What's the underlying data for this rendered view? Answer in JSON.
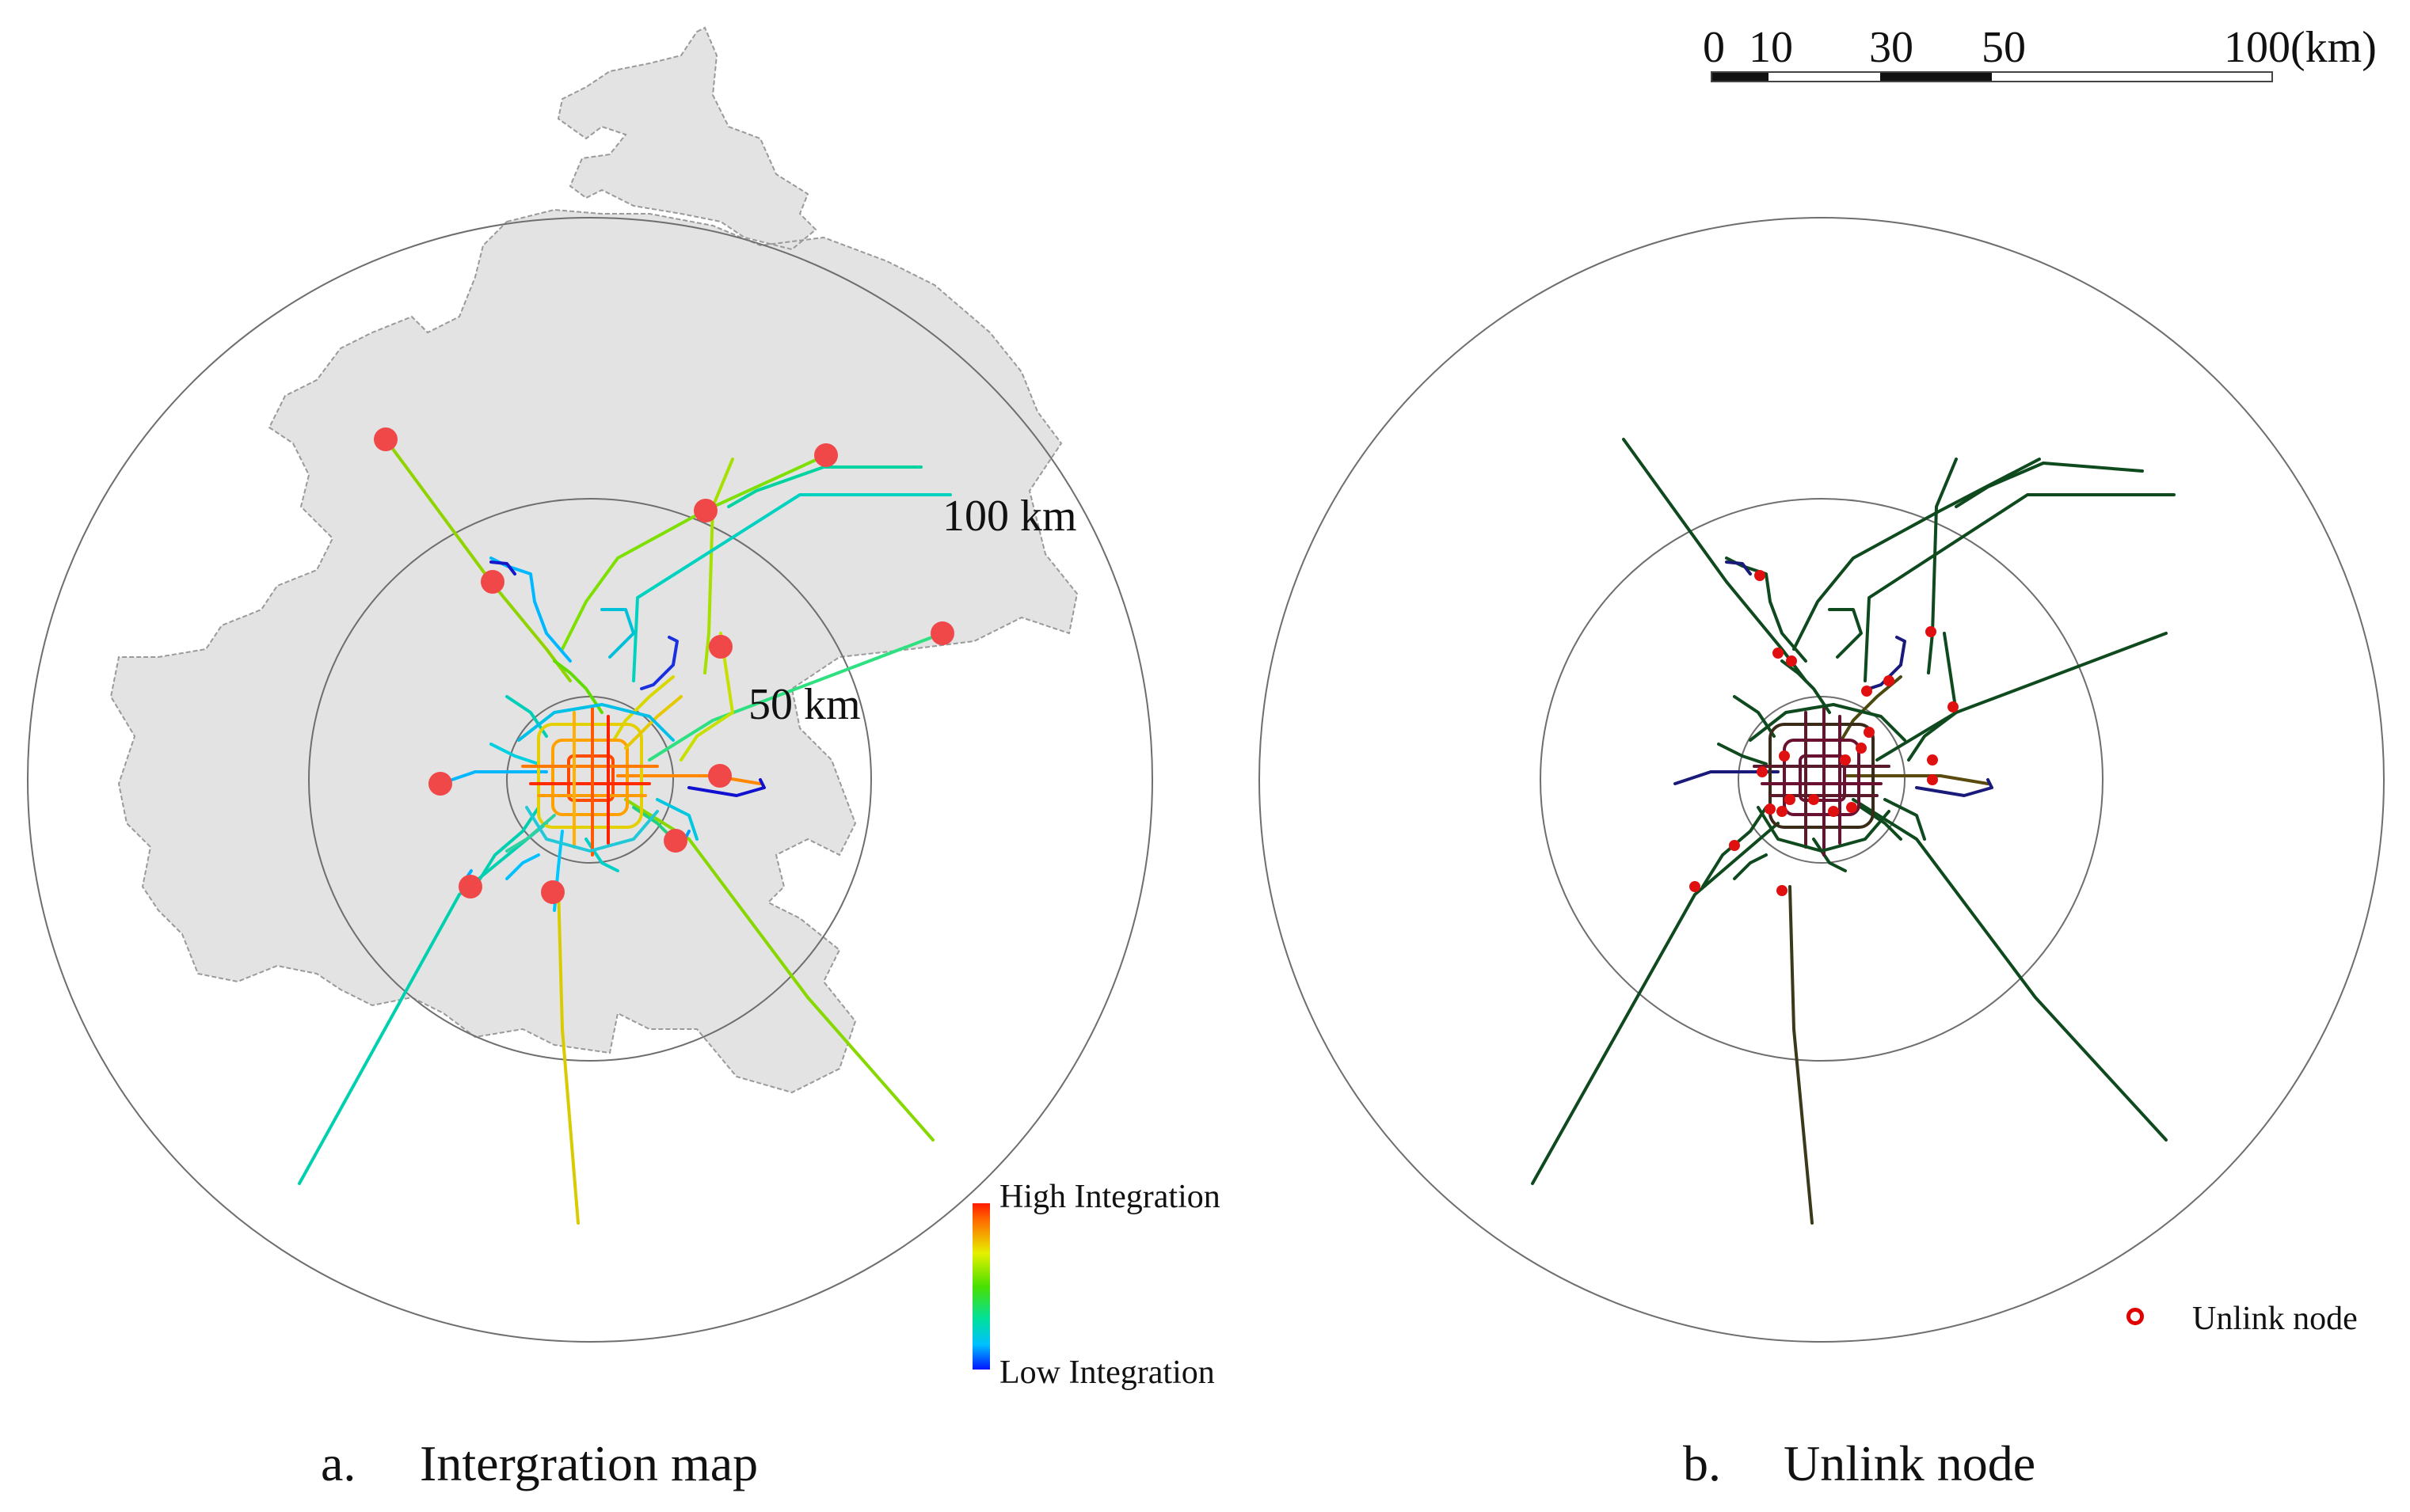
{
  "panel_a": {
    "caption_letter": "a.",
    "caption_title": "Intergration map",
    "ring_labels": {
      "ring_100": "100 km",
      "ring_50": "50 km"
    },
    "legend": {
      "high": "High Integration",
      "low": "Low Integration"
    }
  },
  "panel_b": {
    "caption_letter": "b.",
    "caption_title": "Unlink node",
    "legend": {
      "marker_label": "Unlink node"
    }
  },
  "scale_bar": {
    "ticks": [
      "0",
      "10",
      "30",
      "50",
      "100(km)"
    ],
    "tick_values_km": [
      0,
      10,
      30,
      50,
      100
    ],
    "filled_segments_km": [
      [
        0,
        10
      ],
      [
        30,
        50
      ]
    ]
  },
  "colors": {
    "beijing_region_fill": "#e3e3e3",
    "beijing_region_border": "#9a9a9a",
    "ring_stroke": "#6e6e6e",
    "node_marker_a": "#f04848",
    "node_marker_b": "#e01010",
    "network_b_main": "#0f4a1e",
    "network_b_core": "#6a1030",
    "network_b_low": "#1a1a7a"
  }
}
